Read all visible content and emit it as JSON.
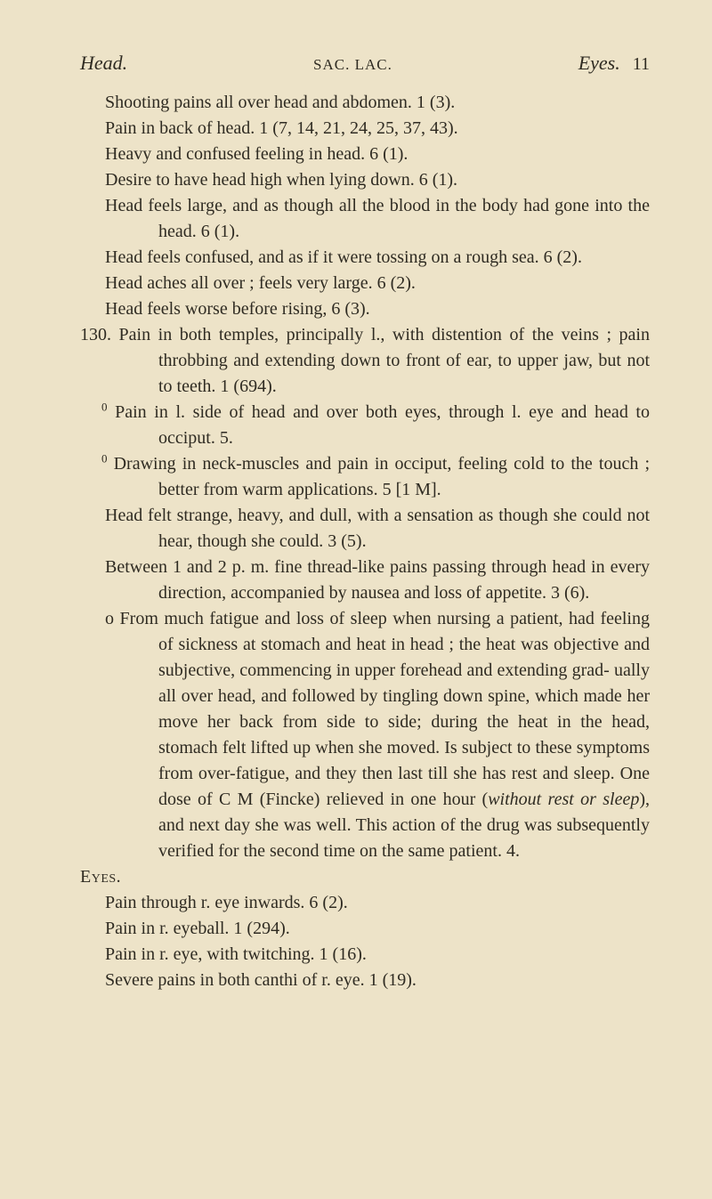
{
  "header": {
    "left": "Head.",
    "center": "SAC. LAC.",
    "right_label": "Eyes.",
    "page_number": "11"
  },
  "lines": {
    "l1": "Shooting pains all over head and abdomen.  1 (3).",
    "l2": "Pain in back of head.  1 (7, 14, 21, 24, 25, 37, 43).",
    "l3": "Heavy and confused feeling in head.  6 (1).",
    "l4": "Desire to have head high when lying down.  6 (1).",
    "l5": "Head feels large, and as though all the blood in the body had gone into the head.  6 (1).",
    "l6": "Head feels confused, and as if it were tossing on a rough sea.  6 (2).",
    "l7": "Head aches all over ; feels very large.  6 (2).",
    "l8": "Head feels worse before rising,  6 (3).",
    "l9": "130. Pain in both temples, principally l., with distention of the veins ; pain throbbing and extending down to front of ear, to upper jaw, but not to teeth. 1 (694).",
    "l10_sup": "0",
    "l10": " Pain in l. side of head and over both eyes, through l. eye and head to occiput.  5.",
    "l11_sup": "0",
    "l11": " Drawing in neck-muscles and pain in occiput, feeling cold to the touch ; better from warm applications. 5 [1 M].",
    "l12": "Head felt strange, heavy, and dull, with a sensation as though she could not hear, though she could. 3 (5).",
    "l13": "Between 1 and 2 p. m. fine thread-like pains passing through head in every direction, accompanied by nausea and loss of appetite.  3 (6).",
    "l14_pfx": "o ",
    "l14a": "From much fatigue and loss of sleep when nursing a patient, had feeling of sickness at stomach and heat in head ; the heat was objective and subjective, commencing in upper forehead and extending grad- ually all over head, and followed by tingling down spine, which made her move her back from side to side; during the heat in the head, stomach felt lifted up when she moved.  Is subject to these symptoms from over-fatigue, and they then last till she has rest and sleep.  One dose of C M (Fincke) relieved in one hour (",
    "l14_i": "without rest or sleep",
    "l14b": "), and next day she was well. This action of the drug was subsequently verified for the second time on the same patient. 4."
  },
  "eyes": {
    "title": "Eyes.",
    "e1": "Pain through r. eye inwards.  6 (2).",
    "e2": "Pain in r. eyeball.  1 (294).",
    "e3": "Pain in r. eye, with twitching.  1 (16).",
    "e4": "Severe pains in both canthi of r. eye.  1 (19)."
  }
}
